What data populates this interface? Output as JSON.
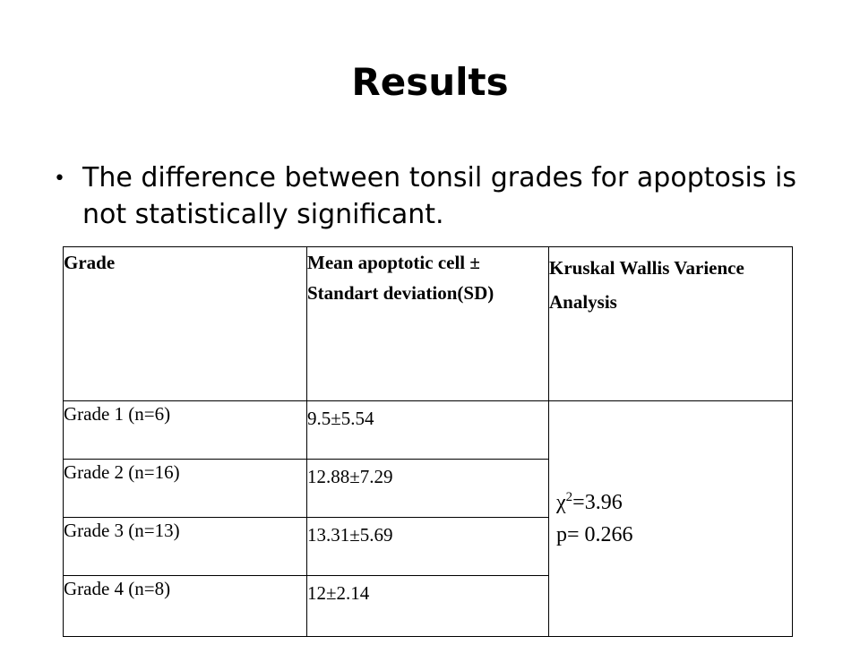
{
  "slide": {
    "title": "Results",
    "bullets": [
      "The difference between tonsil grades for apoptosis is not statistically significant."
    ]
  },
  "table": {
    "headers": {
      "grade": "Grade",
      "mean": "Mean apoptotic cell ± Standart deviation(SD)",
      "test": "Kruskal Wallis Varience Analysis"
    },
    "rows": [
      {
        "grade": "Grade 1 (n=6)",
        "mean": "9.5±5.54"
      },
      {
        "grade": "Grade 2 (n=16)",
        "mean": "12.88±7.29"
      },
      {
        "grade": "Grade 3 (n=13)",
        "mean": "13.31±5.69"
      },
      {
        "grade": "Grade 4 (n=8)",
        "mean": "12±2.14"
      }
    ],
    "test_result": {
      "chi_symbol": "χ",
      "chi_exponent": "2",
      "chi_value": "=3.96",
      "p_value": "p= 0.266"
    }
  }
}
